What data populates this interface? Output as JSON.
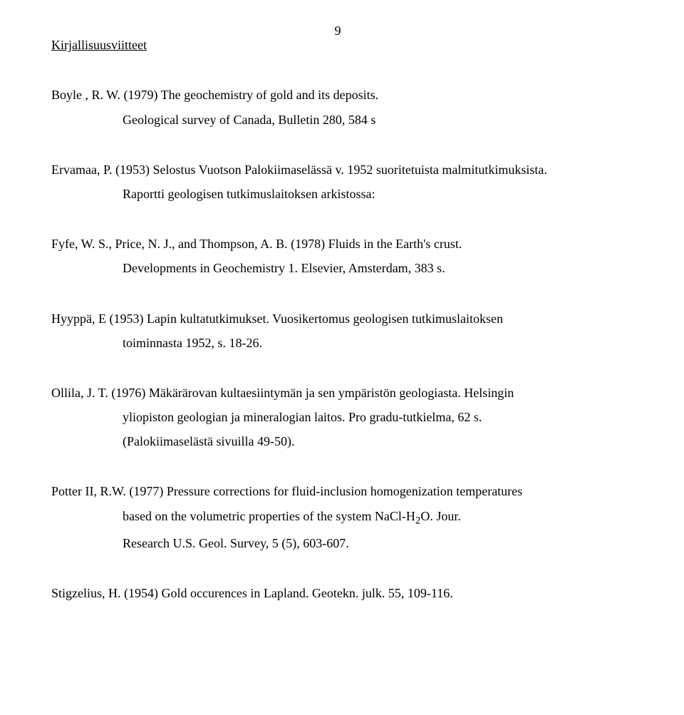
{
  "page_number": "9",
  "heading": "Kirjallisuusviitteet",
  "refs": {
    "boyle": {
      "line1": "Boyle , R. W. (1979) The geochemistry of gold and its deposits.",
      "line2": "Geological survey of Canada, Bulletin 280, 584 s"
    },
    "ervamaa": {
      "line1": "Ervamaa, P. (1953) Selostus Vuotson Palokiimaselässä v. 1952 suoritetuista malmitutkimuksista.",
      "line2": "Raportti geologisen tutkimuslaitoksen arkistossa:"
    },
    "fyfe": {
      "line1": "Fyfe, W. S., Price, N. J., and Thompson, A. B. (1978) Fluids in the Earth's crust.",
      "line2": "Developments in Geochemistry 1. Elsevier, Amsterdam, 383 s."
    },
    "hyyppa": {
      "line1": "Hyyppä, E (1953) Lapin kultatutkimukset. Vuosikertomus geologisen tutkimuslaitoksen",
      "line2": "toiminnasta 1952, s. 18-26."
    },
    "ollila": {
      "line1": "Ollila, J. T. (1976) Mäkärärovan kultaesiintymän ja sen ympäristön geologiasta. Helsingin",
      "line2": "yliopiston geologian ja mineralogian laitos. Pro gradu-tutkielma, 62 s.",
      "line3": "(Palokiimaselästä sivuilla 49-50)."
    },
    "potter": {
      "line1": "Potter II, R.W. (1977) Pressure corrections for fluid-inclusion homogenization temperatures",
      "line2_part_a": "based on the volumetric properties of the system NaCl-H",
      "line2_sub": "2",
      "line2_part_b": "O. Jour.",
      "line3": "Research U.S. Geol. Survey, 5 (5), 603-607."
    },
    "stigzelius": {
      "line1": "Stigzelius, H. (1954) Gold occurences in Lapland. Geotekn. julk. 55, 109-116."
    }
  }
}
